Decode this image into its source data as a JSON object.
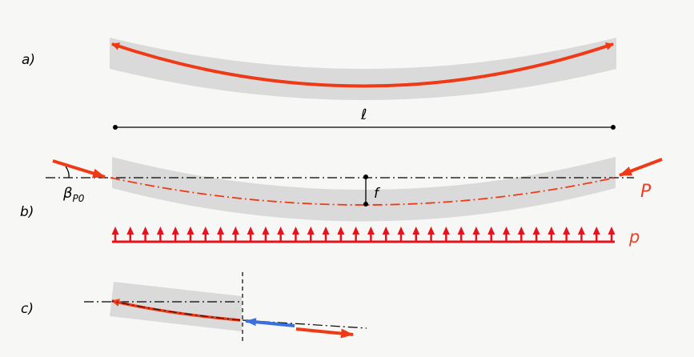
{
  "labels": {
    "a": "a)",
    "b": "b)",
    "c": "c)",
    "span": "ℓ",
    "sag": "f",
    "angle_symbol": "β",
    "angle_subscript": "P0",
    "force": "P",
    "load": "p"
  },
  "colors": {
    "background": "#f7f8f5",
    "beam": "#dadada",
    "tendon": "#ee3a17",
    "load": "#e8121c",
    "counter_force": "#3a6fe0",
    "line": "#000000",
    "force_label": "#e8412a"
  }
}
